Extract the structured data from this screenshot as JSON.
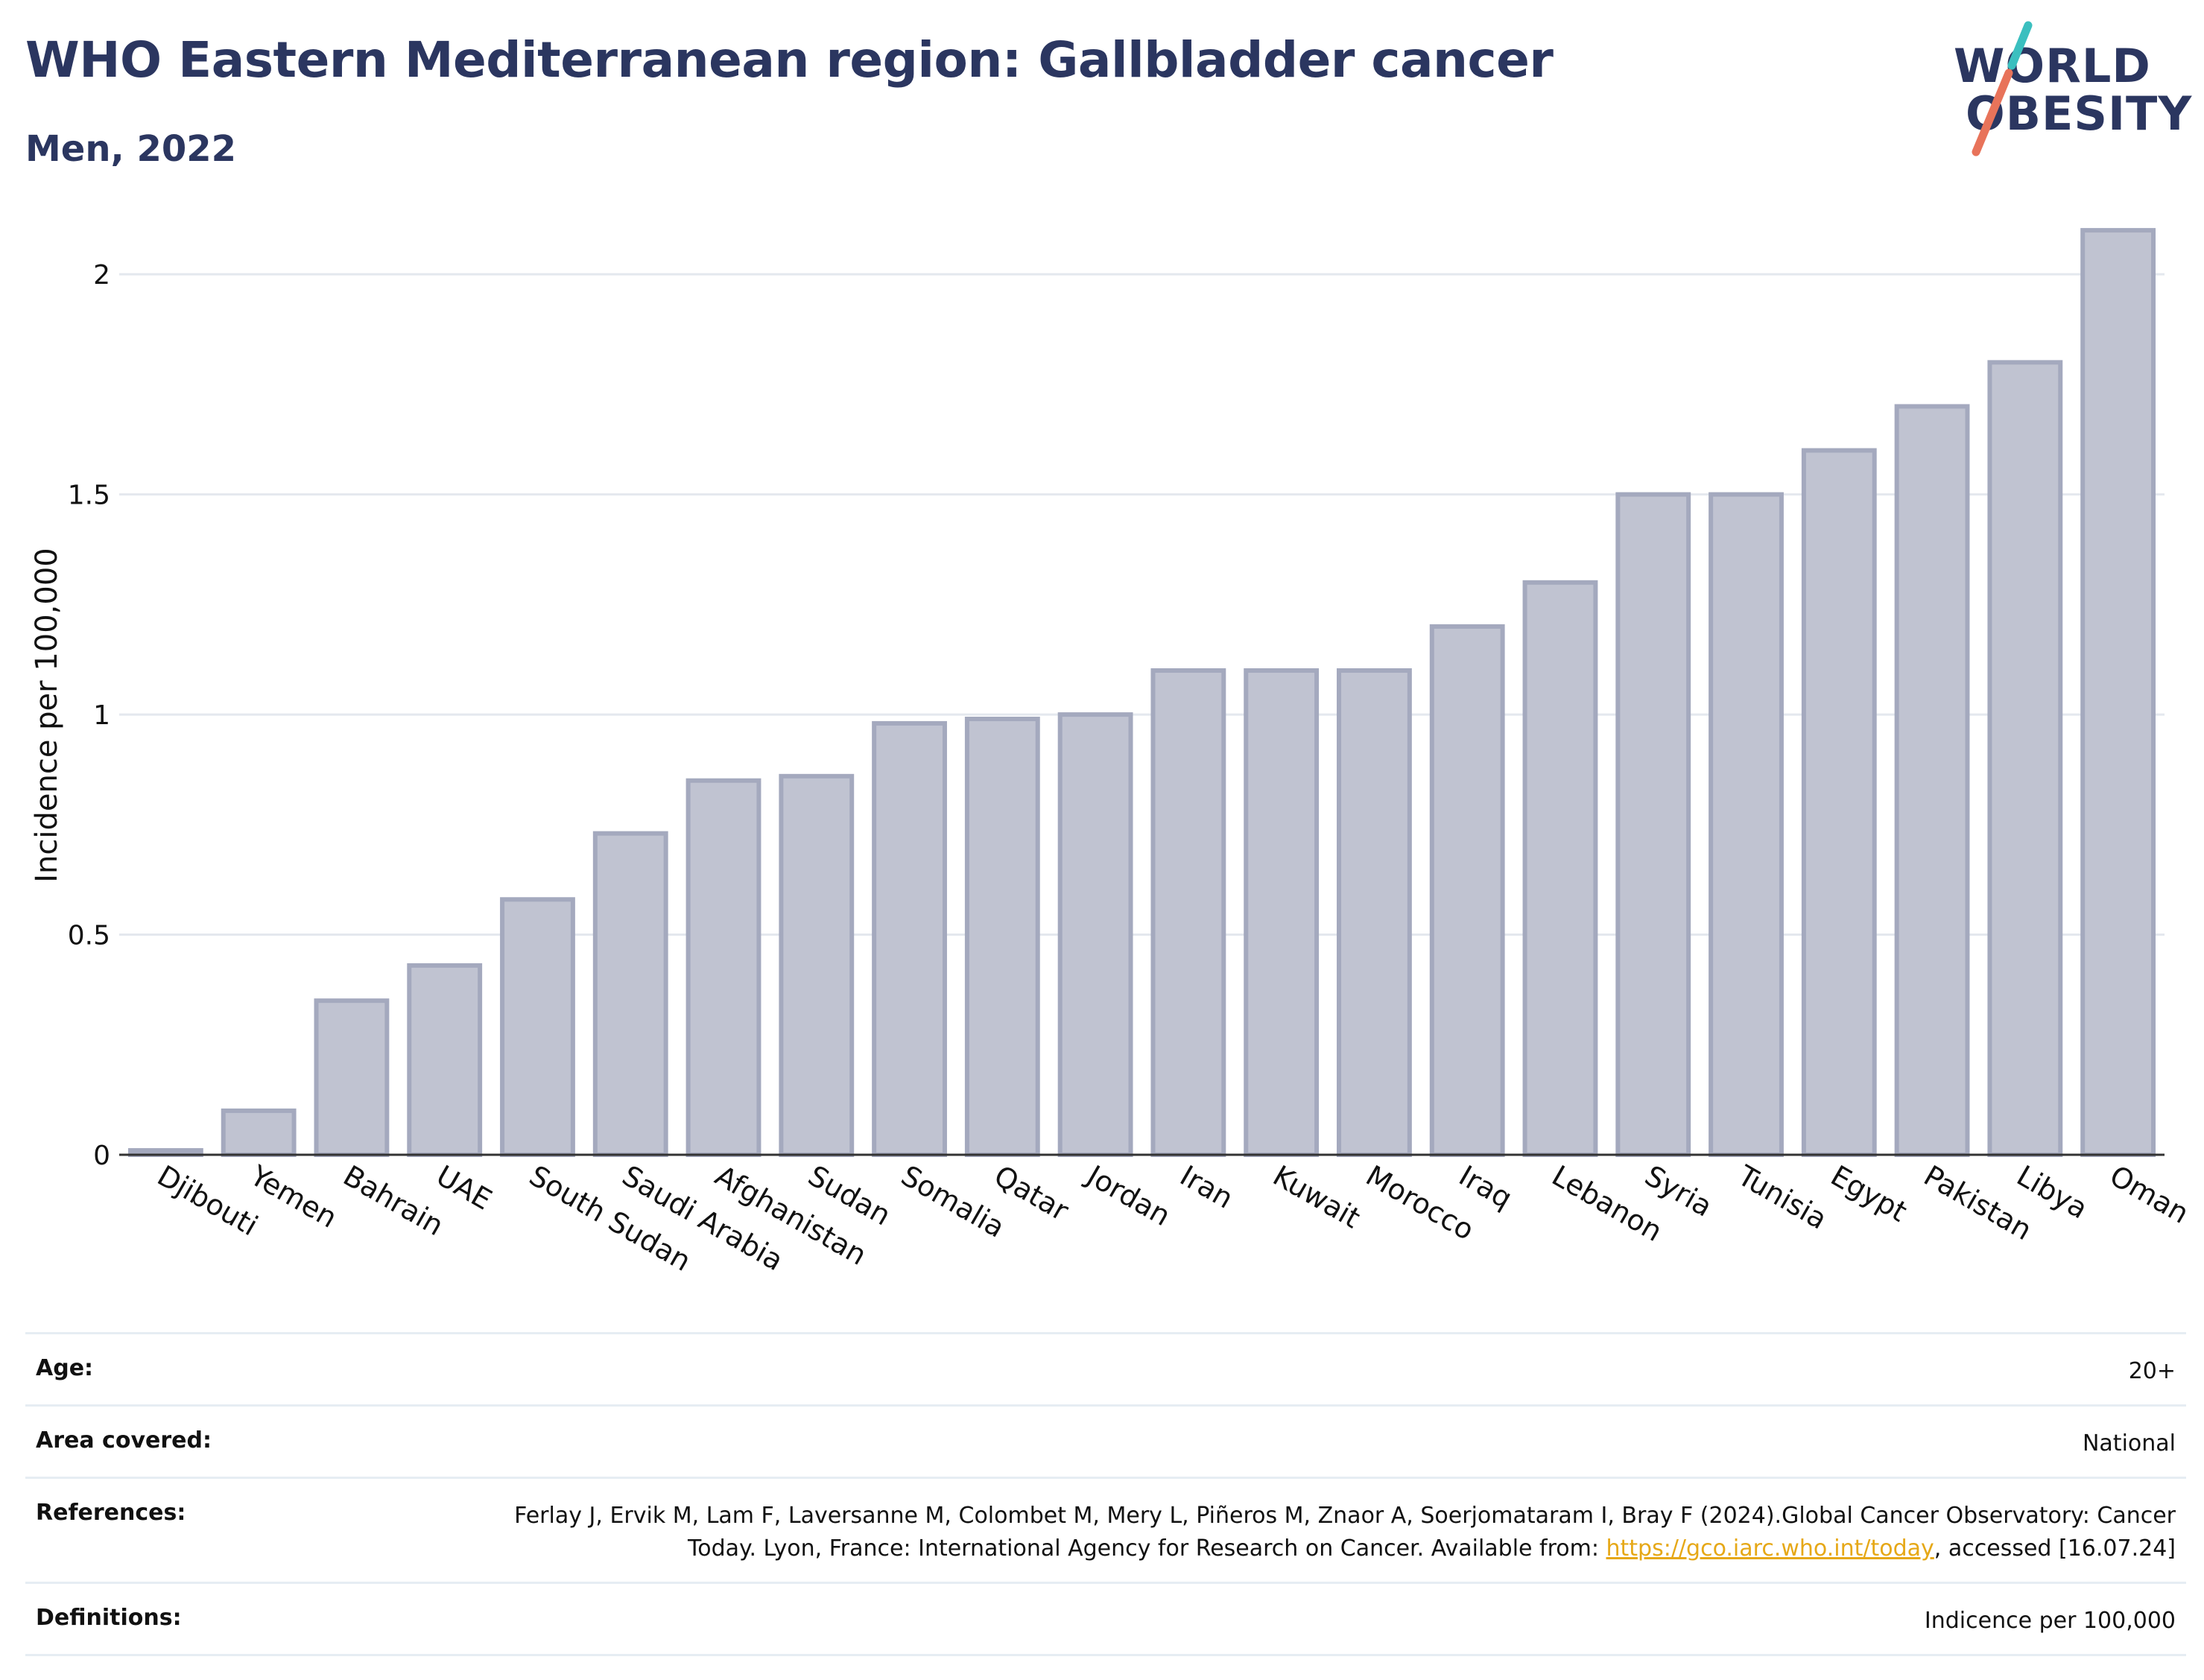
{
  "header": {
    "title": "WHO Eastern Mediterranean region: Gallbladder cancer",
    "subtitle": "Men, 2022"
  },
  "logo": {
    "line1": "WORLD",
    "line2": "OBESITY",
    "slash_colors": [
      "#3bbfbf",
      "#e8735a"
    ]
  },
  "chart_data": {
    "type": "bar",
    "title": "",
    "xlabel": "",
    "ylabel": "Incidence per 100,000",
    "ylim": [
      0,
      2.2
    ],
    "yticks": [
      0,
      0.5,
      1,
      1.5,
      2
    ],
    "ytick_labels": [
      "0",
      "0.5",
      "1",
      "1.5",
      "2"
    ],
    "grid": true,
    "categories": [
      "Djibouti",
      "Yemen",
      "Bahrain",
      "UAE",
      "South Sudan",
      "Saudi Arabia",
      "Afghanistan",
      "Sudan",
      "Somalia",
      "Qatar",
      "Jordan",
      "Iran",
      "Kuwait",
      "Morocco",
      "Iraq",
      "Lebanon",
      "Syria",
      "Tunisia",
      "Egypt",
      "Pakistan",
      "Libya",
      "Oman"
    ],
    "values": [
      0.01,
      0.1,
      0.35,
      0.43,
      0.58,
      0.73,
      0.85,
      0.86,
      0.98,
      0.99,
      1.0,
      1.1,
      1.1,
      1.1,
      1.2,
      1.3,
      1.5,
      1.5,
      1.6,
      1.7,
      1.8,
      2.1
    ],
    "bar_fill": "#c0c3d1",
    "bar_stroke": "#a4a9be"
  },
  "info": {
    "age_label": "Age:",
    "age_value": "20+",
    "area_label": "Area covered:",
    "area_value": "National",
    "references_label": "References:",
    "references_text_1": "Ferlay J, Ervik M, Lam F, Laversanne M, Colombet M, Mery L, Piñeros M, Znaor A, Soerjomataram I, Bray F (2024).Global Cancer Observatory: Cancer Today. Lyon, France: International Agency for Research on Cancer. Available from: ",
    "references_link": "https://gco.iarc.who.int/today",
    "references_text_2": ", accessed [16.07.24]",
    "definitions_label": "Definitions:",
    "definitions_value": "Indicence per 100,000"
  }
}
